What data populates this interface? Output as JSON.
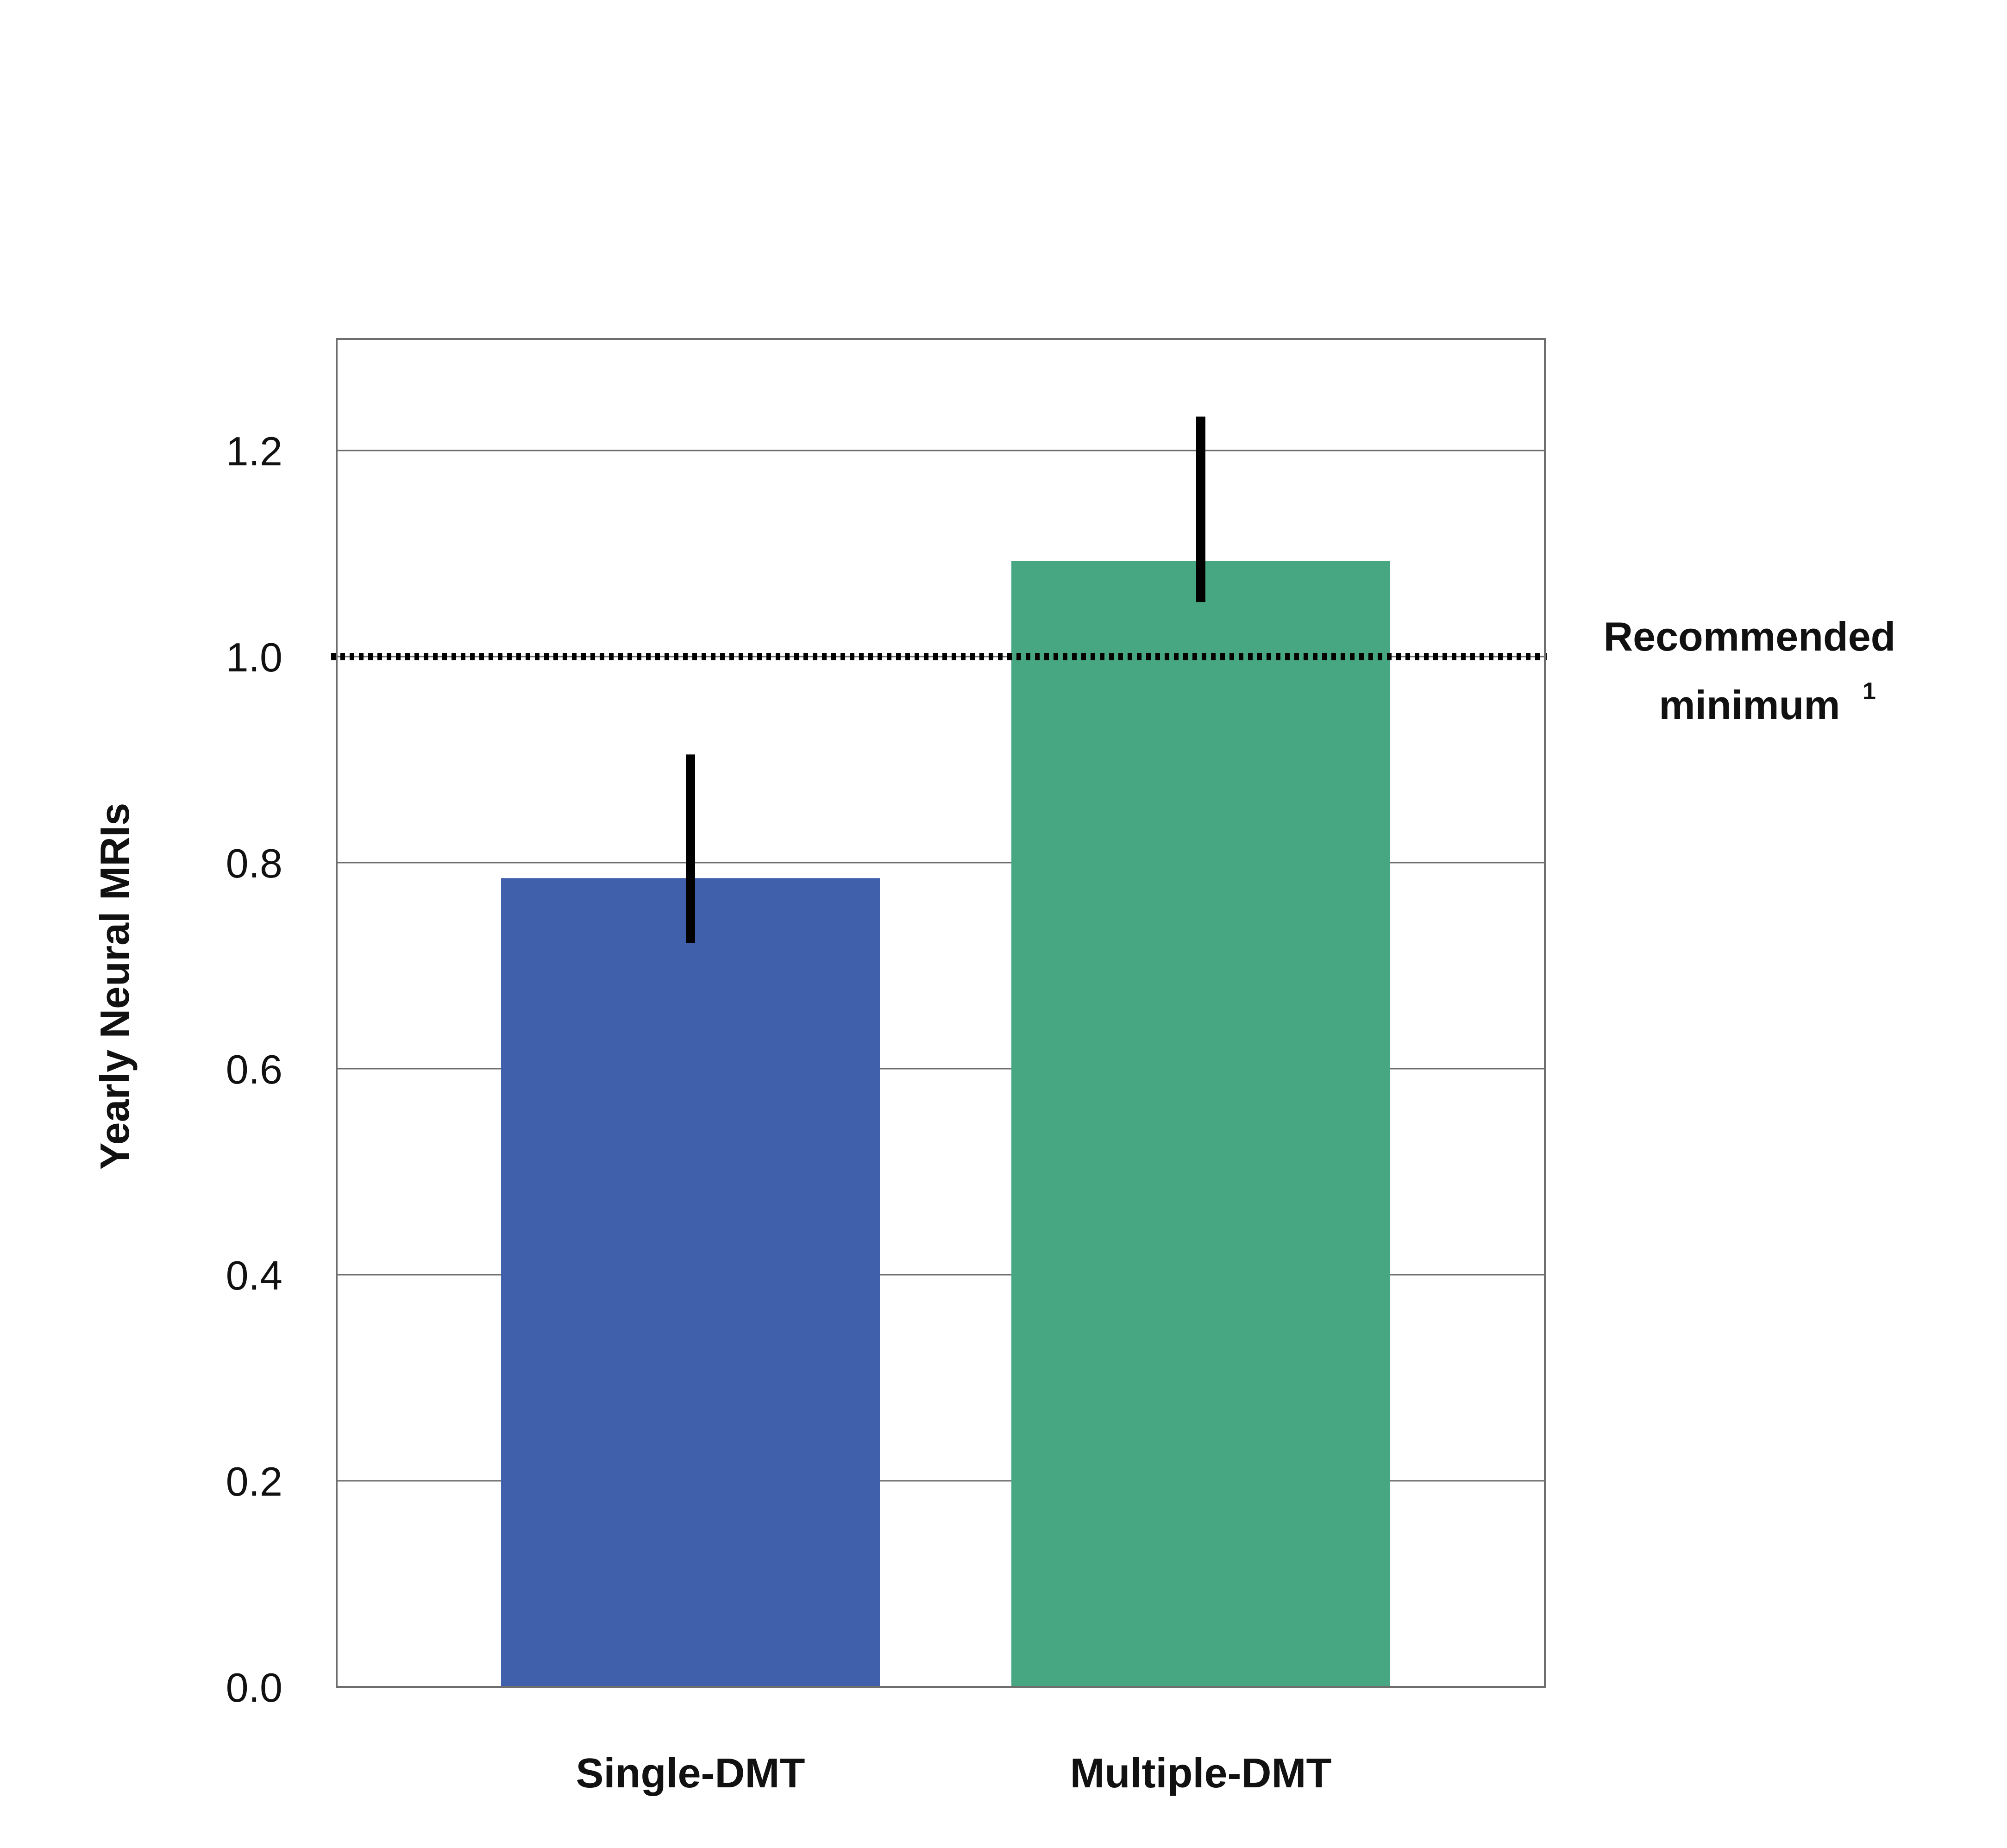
{
  "chart_data": {
    "type": "bar",
    "title": "",
    "xlabel": "",
    "ylabel": "Yearly Neural MRIs",
    "ylim": [
      0,
      1.3
    ],
    "yticks": [
      "0.0",
      "0.2",
      "0.4",
      "0.6",
      "0.8",
      "1.0",
      "1.2"
    ],
    "grid": true,
    "categories": [
      "Single-DMT",
      "Multiple-DMT"
    ],
    "values": [
      0.785,
      1.093
    ],
    "error_bars": [
      {
        "low": 0.722,
        "high": 0.905
      },
      {
        "low": 1.053,
        "high": 1.233
      }
    ],
    "colors": [
      "#4160ab",
      "#47a782"
    ],
    "reference_line": {
      "value": 1.0,
      "style": "dotted",
      "label_line1": "Recommended",
      "label_line2": "minimum",
      "footnote": "1"
    }
  }
}
